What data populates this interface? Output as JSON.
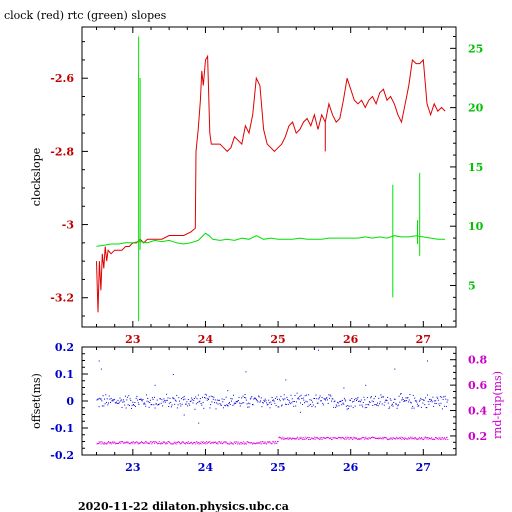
{
  "chart_data": [
    {
      "type": "line",
      "title": "clock (red) rtc (green) slopes",
      "xlabel": "",
      "ylabel": "clockslope",
      "y2label": "",
      "xlim": [
        22.3,
        27.45
      ],
      "ylim": [
        -3.28,
        -2.46
      ],
      "y2lim": [
        1.5,
        26.8
      ],
      "grid": false,
      "colors": {
        "clock": "#e00000",
        "rtc": "#00e000",
        "left_axis": "#c00000",
        "right_axis": "#00c000",
        "x_axis": "#c00000",
        "frame": "#000000"
      },
      "x_ticks": [
        23,
        24,
        25,
        26,
        27
      ],
      "x_tick_labels": [
        "23",
        "24",
        "25",
        "26",
        "27"
      ],
      "y_ticks": [
        -3.2,
        -3.0,
        -2.8,
        -2.6
      ],
      "y_tick_labels": [
        "-3.2",
        "-3",
        "-2.8",
        "-2.6"
      ],
      "y2_ticks": [
        5,
        10,
        15,
        20,
        25
      ],
      "y2_tick_labels": [
        "5",
        "10",
        "15",
        "20",
        "25"
      ],
      "series": [
        {
          "name": "clock",
          "axis": "left",
          "x": [
            22.5,
            22.52,
            22.54,
            22.56,
            22.58,
            22.6,
            22.62,
            22.64,
            22.66,
            22.7,
            22.75,
            22.8,
            22.85,
            22.9,
            22.95,
            23.0,
            23.05,
            23.1,
            23.15,
            23.2,
            23.3,
            23.4,
            23.5,
            23.6,
            23.7,
            23.8,
            23.86,
            23.87,
            23.9,
            23.93,
            23.95,
            23.97,
            24.0,
            24.03,
            24.06,
            24.08,
            24.1,
            24.15,
            24.2,
            24.25,
            24.3,
            24.35,
            24.4,
            24.45,
            24.5,
            24.55,
            24.6,
            24.65,
            24.7,
            24.75,
            24.8,
            24.85,
            24.9,
            24.95,
            25.0,
            25.05,
            25.1,
            25.15,
            25.2,
            25.25,
            25.3,
            25.35,
            25.4,
            25.45,
            25.5,
            25.55,
            25.6,
            25.65,
            25.7,
            25.75,
            25.8,
            25.85,
            25.9,
            25.95,
            26.0,
            26.05,
            26.1,
            26.15,
            26.2,
            26.25,
            26.3,
            26.35,
            26.4,
            26.45,
            26.5,
            26.55,
            26.6,
            26.65,
            26.7,
            26.75,
            26.8,
            26.85,
            26.9,
            26.95,
            27.0,
            27.05,
            27.1,
            27.15,
            27.2,
            27.25,
            27.3
          ],
          "y": [
            -3.1,
            -3.24,
            -3.1,
            -3.18,
            -3.08,
            -3.12,
            -3.06,
            -3.1,
            -3.07,
            -3.08,
            -3.07,
            -3.07,
            -3.07,
            -3.06,
            -3.06,
            -3.05,
            -3.05,
            -3.04,
            -3.05,
            -3.04,
            -3.04,
            -3.04,
            -3.03,
            -3.03,
            -3.03,
            -3.02,
            -3.01,
            -2.8,
            -2.74,
            -2.66,
            -2.58,
            -2.62,
            -2.55,
            -2.54,
            -2.75,
            -2.78,
            -2.78,
            -2.78,
            -2.78,
            -2.79,
            -2.8,
            -2.79,
            -2.76,
            -2.77,
            -2.78,
            -2.73,
            -2.75,
            -2.7,
            -2.6,
            -2.62,
            -2.74,
            -2.78,
            -2.79,
            -2.8,
            -2.79,
            -2.78,
            -2.76,
            -2.73,
            -2.72,
            -2.75,
            -2.74,
            -2.72,
            -2.71,
            -2.73,
            -2.7,
            -2.74,
            -2.7,
            -2.72,
            -2.67,
            -2.7,
            -2.72,
            -2.71,
            -2.66,
            -2.6,
            -2.63,
            -2.66,
            -2.67,
            -2.66,
            -2.68,
            -2.66,
            -2.65,
            -2.67,
            -2.64,
            -2.63,
            -2.66,
            -2.65,
            -2.67,
            -2.7,
            -2.72,
            -2.67,
            -2.62,
            -2.55,
            -2.56,
            -2.56,
            -2.55,
            -2.67,
            -2.7,
            -2.67,
            -2.69,
            -2.68,
            -2.69
          ]
        },
        {
          "name": "rtc",
          "axis": "right",
          "x": [
            22.5,
            22.6,
            22.7,
            22.8,
            22.9,
            23.0,
            23.08,
            23.1,
            23.2,
            23.3,
            23.4,
            23.5,
            23.6,
            23.7,
            23.8,
            23.9,
            24.0,
            24.05,
            24.1,
            24.2,
            24.3,
            24.4,
            24.5,
            24.6,
            24.7,
            24.8,
            24.9,
            25.0,
            25.1,
            25.2,
            25.3,
            25.4,
            25.5,
            25.6,
            25.7,
            25.8,
            25.9,
            26.0,
            26.1,
            26.2,
            26.3,
            26.4,
            26.5,
            26.6,
            26.7,
            26.8,
            26.9,
            27.0,
            27.1,
            27.2,
            27.3
          ],
          "y": [
            8.3,
            8.4,
            8.5,
            8.5,
            8.6,
            8.6,
            8.7,
            8.7,
            8.6,
            8.8,
            8.7,
            8.8,
            8.6,
            8.5,
            8.6,
            8.8,
            9.4,
            9.2,
            8.9,
            8.8,
            8.9,
            8.8,
            9.0,
            8.9,
            9.2,
            8.9,
            9.0,
            8.9,
            8.9,
            8.9,
            9.0,
            8.9,
            8.9,
            8.9,
            9.0,
            9.0,
            9.0,
            9.0,
            9.0,
            9.1,
            9.0,
            9.1,
            9.0,
            9.2,
            9.1,
            9.1,
            9.2,
            9.1,
            9.0,
            8.9,
            8.9
          ]
        }
      ],
      "spikes": [
        {
          "series": "rtc",
          "x": 23.08,
          "from": 2,
          "to": 26
        },
        {
          "series": "rtc",
          "x": 23.1,
          "from": 8,
          "to": 22.5
        },
        {
          "series": "rtc",
          "x": 26.58,
          "from": 4,
          "to": 13.5
        },
        {
          "series": "rtc",
          "x": 26.95,
          "from": 7.5,
          "to": 14.5
        },
        {
          "series": "rtc",
          "x": 26.92,
          "from": 8.5,
          "to": 10.5
        },
        {
          "series": "clock",
          "x": 25.65,
          "from": -2.8,
          "to": -2.72
        }
      ]
    },
    {
      "type": "scatter",
      "title": "",
      "xlabel": "",
      "ylabel": "offset(ms)",
      "y2label": "rnd-trip(ms)",
      "xlim": [
        22.3,
        27.45
      ],
      "ylim": [
        -0.2,
        0.2
      ],
      "y2lim": [
        0.05,
        0.9
      ],
      "grid": false,
      "colors": {
        "offset": "#0000dd",
        "rnd_trip": "#dd00dd",
        "left_axis": "#0000cc",
        "right_axis": "#cc00cc",
        "x_axis": "#0000cc"
      },
      "x_ticks": [
        23,
        24,
        25,
        26,
        27
      ],
      "x_tick_labels": [
        "23",
        "24",
        "25",
        "26",
        "27"
      ],
      "y_ticks": [
        -0.2,
        -0.1,
        0,
        0.1,
        0.2
      ],
      "y_tick_labels": [
        "-0.2",
        "-0.1",
        "0",
        "0.1",
        "0.2"
      ],
      "y2_ticks": [
        0.2,
        0.4,
        0.6,
        0.8
      ],
      "y2_tick_labels": [
        "0.2",
        "0.4",
        "0.6",
        "0.8"
      ],
      "series": [
        {
          "name": "offset",
          "axis": "left",
          "x_range": [
            22.5,
            27.33
          ],
          "center": 0.0,
          "spread": 0.02,
          "outliers_x": [
            22.53,
            22.56,
            23.3,
            23.55,
            23.9,
            24.55,
            25.1,
            25.55,
            25.9,
            26.6,
            27.05,
            23.7,
            24.3,
            25.3,
            26.2
          ],
          "outliers_y": [
            0.15,
            0.12,
            0.06,
            0.1,
            -0.08,
            0.11,
            0.08,
            0.19,
            0.05,
            0.12,
            0.15,
            -0.05,
            0.04,
            -0.04,
            0.06
          ]
        },
        {
          "name": "rnd-trip",
          "axis": "right",
          "x_range": [
            22.5,
            27.33
          ],
          "center_start": 0.15,
          "center_end": 0.185,
          "spread": 0.01
        }
      ]
    }
  ],
  "footer": "2020-11-22 dilaton.physics.ubc.ca"
}
